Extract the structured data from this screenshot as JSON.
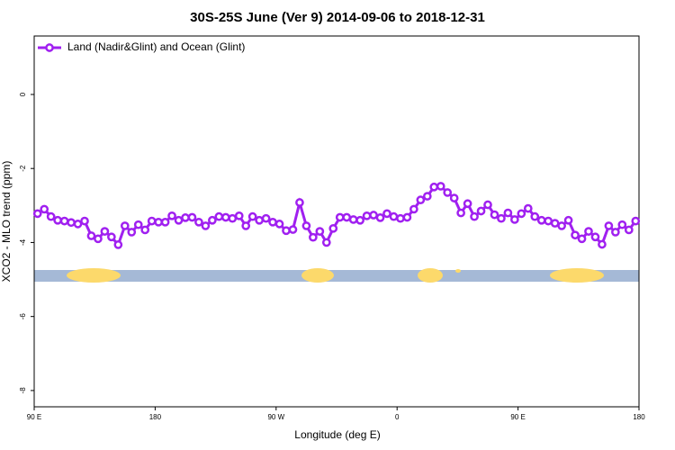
{
  "chart_data": {
    "type": "line",
    "title": "30S-25S June (Ver 9)   2014-09-06 to 2018-12-31",
    "xlabel": "Longitude (deg E)",
    "ylabel": "XCO2 - MLO trend (ppm)",
    "xlim": [
      90,
      540
    ],
    "xticks": [
      {
        "value": 90,
        "label": "90 E"
      },
      180,
      {
        "value": 270,
        "label": "90 W"
      },
      {
        "value": 360,
        "label": "0"
      },
      {
        "value": 450,
        "label": "90 E"
      },
      {
        "value": 540,
        "label": "180"
      }
    ],
    "ylim": [
      -8.44,
      1.58
    ],
    "yticks": [
      0,
      -2,
      -4,
      -6,
      -8
    ],
    "legend": "top-left",
    "series": [
      {
        "name": "Land (Nadir&Glint) and Ocean (Glint)",
        "color": "#a020f0",
        "x": [
          92.5,
          97.5,
          102.5,
          107.5,
          112.5,
          117.5,
          122.5,
          127.5,
          132.5,
          137.5,
          142.5,
          147.5,
          152.5,
          157.5,
          162.5,
          167.5,
          172.5,
          177.5,
          182.5,
          187.5,
          192.5,
          197.5,
          202.5,
          207.5,
          212.5,
          217.5,
          222.5,
          227.5,
          232.5,
          237.5,
          242.5,
          247.5,
          252.5,
          257.5,
          262.5,
          267.5,
          272.5,
          277.5,
          282.5,
          287.5,
          292.5,
          297.5,
          302.5,
          307.5,
          312.5,
          317.5,
          322.5,
          327.5,
          332.5,
          337.5,
          342.5,
          347.5,
          352.5,
          357.5,
          362.5,
          367.5,
          372.5,
          377.5,
          382.5,
          387.5,
          392.5,
          397.5,
          402.5,
          407.5,
          412.5,
          417.5,
          422.5,
          427.5,
          432.5,
          437.5,
          442.5,
          447.5,
          452.5,
          457.5,
          462.5,
          467.5,
          472.5,
          477.5,
          482.5,
          487.5,
          492.5,
          497.5,
          502.5,
          507.5,
          512.5,
          517.5,
          522.5,
          527.5,
          532.5,
          537.5
        ],
        "values": [
          -3.22,
          -3.1,
          -3.3,
          -3.4,
          -3.42,
          -3.46,
          -3.5,
          -3.42,
          -3.82,
          -3.9,
          -3.7,
          -3.85,
          -4.06,
          -3.55,
          -3.72,
          -3.52,
          -3.66,
          -3.42,
          -3.45,
          -3.45,
          -3.28,
          -3.4,
          -3.33,
          -3.32,
          -3.45,
          -3.55,
          -3.4,
          -3.3,
          -3.32,
          -3.35,
          -3.28,
          -3.55,
          -3.3,
          -3.4,
          -3.35,
          -3.45,
          -3.5,
          -3.68,
          -3.65,
          -2.92,
          -3.55,
          -3.86,
          -3.7,
          -4.0,
          -3.62,
          -3.32,
          -3.32,
          -3.38,
          -3.4,
          -3.28,
          -3.26,
          -3.33,
          -3.22,
          -3.3,
          -3.35,
          -3.32,
          -3.1,
          -2.85,
          -2.75,
          -2.5,
          -2.48,
          -2.65,
          -2.8,
          -3.2,
          -2.95,
          -3.3,
          -3.15,
          -2.98,
          -3.25,
          -3.35,
          -3.2,
          -3.38,
          -3.22,
          -3.08,
          -3.3,
          -3.4,
          -3.42,
          -3.48,
          -3.55,
          -3.4,
          -3.8,
          -3.9,
          -3.7,
          -3.85,
          -4.05,
          -3.55,
          -3.72,
          -3.52,
          -3.66,
          -3.42
        ]
      }
    ]
  }
}
